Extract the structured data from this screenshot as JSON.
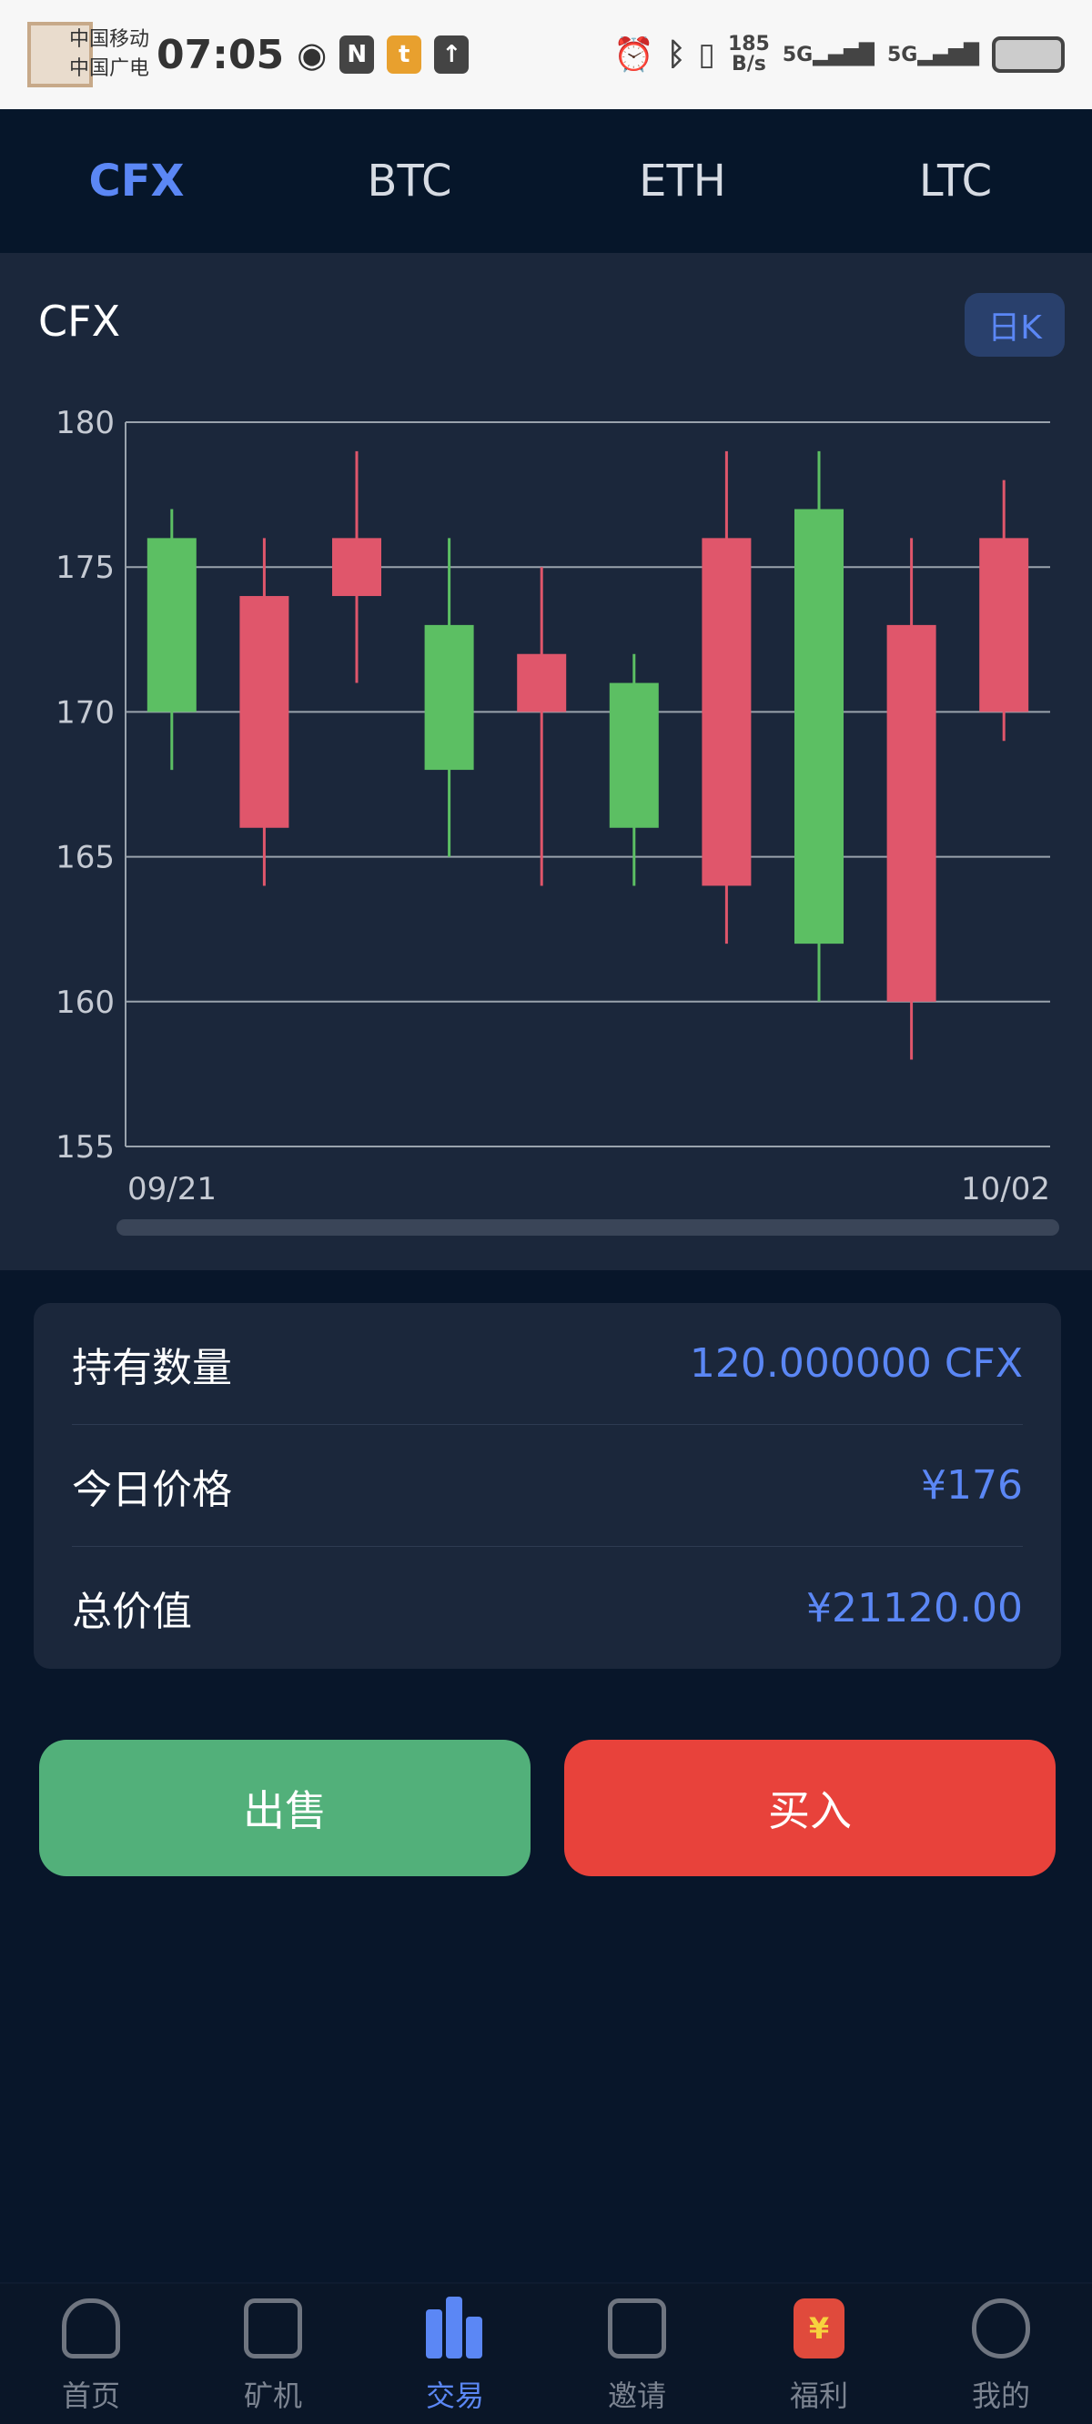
{
  "status_bar": {
    "carrier1": "中国移动",
    "carrier2": "中国广电",
    "time": "07:05",
    "speed_value": "185",
    "speed_unit": "B/s",
    "net1": "5G",
    "net2": "5G"
  },
  "tabs": [
    {
      "label": "CFX",
      "active": true
    },
    {
      "label": "BTC"
    },
    {
      "label": "ETH"
    },
    {
      "label": "LTC"
    }
  ],
  "chart_card": {
    "title": "CFX",
    "period_button": "日K"
  },
  "chart_data": {
    "type": "candlestick",
    "x_labels": [
      "09/21",
      "10/02"
    ],
    "ylim": [
      155,
      180
    ],
    "y_ticks": [
      180,
      175,
      170,
      165,
      160,
      155
    ],
    "grid": true,
    "colors": {
      "up": "#5cbf63",
      "down": "#e0566b"
    },
    "candles": [
      {
        "open": 170,
        "close": 176,
        "high": 177,
        "low": 168
      },
      {
        "open": 174,
        "close": 166,
        "high": 176,
        "low": 164
      },
      {
        "open": 176,
        "close": 174,
        "high": 179,
        "low": 171
      },
      {
        "open": 168,
        "close": 173,
        "high": 176,
        "low": 165
      },
      {
        "open": 172,
        "close": 170,
        "high": 175,
        "low": 164
      },
      {
        "open": 166,
        "close": 171,
        "high": 172,
        "low": 164
      },
      {
        "open": 176,
        "close": 164,
        "high": 179,
        "low": 162
      },
      {
        "open": 162,
        "close": 177,
        "high": 179,
        "low": 160
      },
      {
        "open": 173,
        "close": 160,
        "high": 176,
        "low": 158
      },
      {
        "open": 176,
        "close": 170,
        "high": 178,
        "low": 169
      }
    ]
  },
  "holdings": [
    {
      "label": "持有数量",
      "value": "120.000000 CFX"
    },
    {
      "label": "今日价格",
      "value": "¥176"
    },
    {
      "label": "总价值",
      "value": "¥21120.00"
    }
  ],
  "actions": {
    "sell": "出售",
    "buy": "买入"
  },
  "nav": [
    {
      "label": "首页",
      "icon": "home-icon"
    },
    {
      "label": "矿机",
      "icon": "miner-icon"
    },
    {
      "label": "交易",
      "icon": "chart-bar-icon",
      "active": true
    },
    {
      "label": "邀请",
      "icon": "invite-envelope-icon"
    },
    {
      "label": "福利",
      "icon": "red-envelope-icon"
    },
    {
      "label": "我的",
      "icon": "user-icon"
    }
  ],
  "accent": "#5b87f5"
}
